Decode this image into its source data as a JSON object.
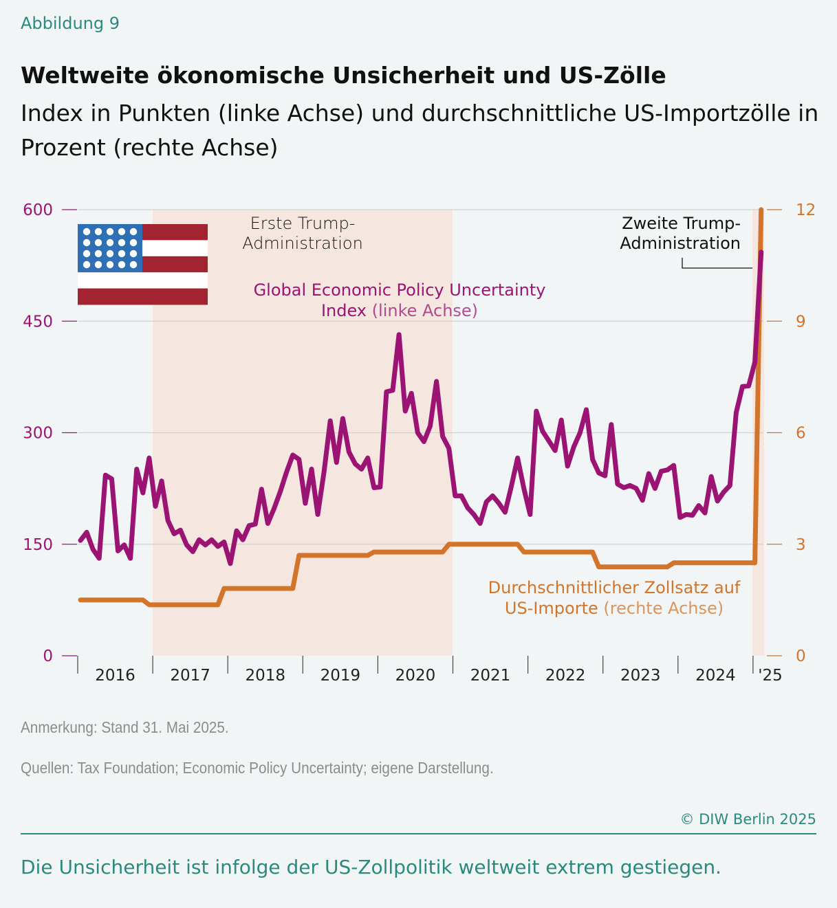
{
  "figure_label": "Abbildung 9",
  "title": "Weltweite ökonomische Unsicherheit und US-Zölle",
  "subtitle": "Index in Punkten (linke Achse) und durchschnittliche US-Importzölle in Prozent (rechte Achse)",
  "note": "Anmerkung: Stand 31. Mai 2025.",
  "sources": "Quellen: Tax Foundation; Economic Policy Uncertainty; eigene Darstellung.",
  "copyright": "© DIW Berlin 2025",
  "caption": "Die Unsicherheit ist infolge der US-Zollpolitik weltweit extrem gestiegen.",
  "colors": {
    "epu": "#9b1474",
    "tariff": "#d2742a",
    "shade": "#f5e6e0",
    "accent": "#2a8a7e",
    "background": "#f2f5f6"
  },
  "icons": {
    "flag": "us-flag-icon"
  },
  "chart_data": {
    "type": "line",
    "x_tick_labels": [
      "2016",
      "2017",
      "2018",
      "2019",
      "2020",
      "2021",
      "2022",
      "2023",
      "2024",
      "'25"
    ],
    "y_left": {
      "ticks": [
        0,
        150,
        300,
        450,
        600
      ],
      "ylim": [
        0,
        600
      ]
    },
    "y_right": {
      "ticks": [
        0,
        3,
        6,
        9,
        12
      ],
      "ylim": [
        0,
        12
      ]
    },
    "grid": true,
    "shaded_periods": [
      {
        "label_line1": "Erste Trump-",
        "label_line2": "Administration",
        "from": "2017-01",
        "to": "2021-01"
      },
      {
        "label_line1": "Zweite Trump-",
        "label_line2": "Administration",
        "from": "2025-01",
        "to": "2025-05"
      }
    ],
    "start_month": "2016-01",
    "series": [
      {
        "name": "Global Economic Policy Uncertainty Index",
        "name_suffix": "(linke Achse)",
        "label_line1": "Global Economic Policy Uncertainty",
        "label_line2": "Index",
        "axis": "left",
        "values": [
          155,
          166,
          143,
          131,
          243,
          238,
          141,
          149,
          131,
          251,
          219,
          266,
          201,
          235,
          182,
          164,
          169,
          149,
          140,
          156,
          149,
          156,
          147,
          153,
          124,
          168,
          156,
          175,
          177,
          224,
          178,
          198,
          221,
          247,
          270,
          264,
          205,
          251,
          190,
          247,
          316,
          260,
          319,
          274,
          258,
          251,
          266,
          226,
          227,
          355,
          357,
          432,
          329,
          353,
          300,
          288,
          309,
          369,
          295,
          279,
          215,
          215,
          199,
          190,
          178,
          207,
          215,
          205,
          193,
          228,
          266,
          225,
          190,
          329,
          302,
          289,
          276,
          317,
          255,
          281,
          300,
          331,
          264,
          246,
          242,
          311,
          231,
          226,
          229,
          225,
          209,
          245,
          225,
          248,
          250,
          256,
          186,
          190,
          189,
          202,
          192,
          241,
          208,
          220,
          229,
          327,
          362,
          363,
          395,
          543
        ]
      },
      {
        "name": "Durchschnittlicher Zollsatz auf US-Importe",
        "name_suffix": "(rechte Achse)",
        "label_line1": "Durchschnittlicher Zollsatz auf",
        "label_line2": "US-Importe",
        "axis": "right",
        "values": [
          1.5,
          1.5,
          1.5,
          1.5,
          1.5,
          1.5,
          1.5,
          1.5,
          1.5,
          1.5,
          1.5,
          1.37,
          1.37,
          1.37,
          1.37,
          1.37,
          1.37,
          1.37,
          1.37,
          1.37,
          1.37,
          1.37,
          1.37,
          1.81,
          1.81,
          1.81,
          1.81,
          1.81,
          1.81,
          1.81,
          1.81,
          1.81,
          1.81,
          1.81,
          1.81,
          2.7,
          2.7,
          2.7,
          2.7,
          2.7,
          2.7,
          2.7,
          2.7,
          2.7,
          2.7,
          2.7,
          2.7,
          2.79,
          2.79,
          2.79,
          2.79,
          2.79,
          2.79,
          2.79,
          2.79,
          2.79,
          2.79,
          2.79,
          2.79,
          3.0,
          3.0,
          3.0,
          3.0,
          3.0,
          3.0,
          3.0,
          3.0,
          3.0,
          3.0,
          3.0,
          3.0,
          2.79,
          2.79,
          2.79,
          2.79,
          2.79,
          2.79,
          2.79,
          2.79,
          2.79,
          2.79,
          2.79,
          2.79,
          2.39,
          2.39,
          2.39,
          2.39,
          2.39,
          2.39,
          2.39,
          2.39,
          2.39,
          2.39,
          2.39,
          2.39,
          2.5,
          2.5,
          2.5,
          2.5,
          2.5,
          2.5,
          2.5,
          2.5,
          2.5,
          2.5,
          2.5,
          2.5,
          2.5,
          2.5,
          12.0
        ]
      }
    ]
  }
}
